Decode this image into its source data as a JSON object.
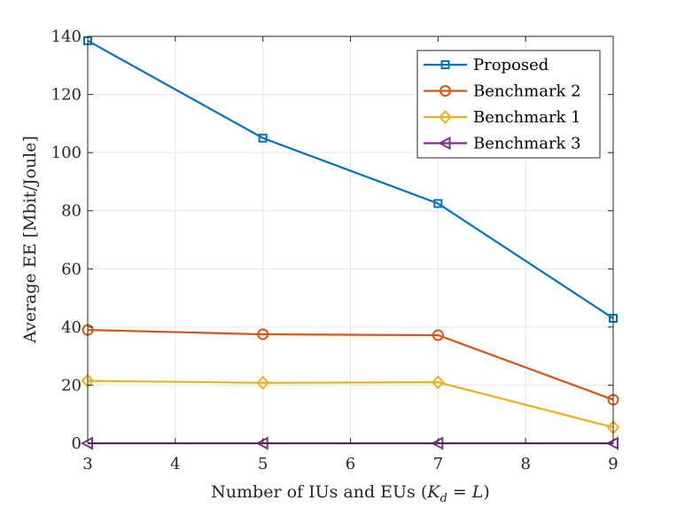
{
  "chart_data": {
    "type": "line",
    "title": "",
    "xlabel": "Number of IUs and EUs (K_d = L)",
    "xlabel_parts": {
      "prefix": "Number of IUs and EUs (",
      "k": "K",
      "sub": "d",
      "eq": " = ",
      "l": "L",
      "suffix": ")"
    },
    "ylabel": "Average EE [Mbit/Joule]",
    "xlim": [
      3,
      9
    ],
    "ylim": [
      0,
      140
    ],
    "xticks": [
      3,
      4,
      5,
      6,
      7,
      8,
      9
    ],
    "yticks": [
      0,
      20,
      40,
      60,
      80,
      100,
      120,
      140
    ],
    "grid": true,
    "legend_position": "top-right",
    "x": [
      3,
      5,
      7,
      9
    ],
    "series": [
      {
        "name": "Proposed",
        "color": "#0072BD",
        "marker": "square",
        "values": [
          138.5,
          105,
          82.5,
          43
        ]
      },
      {
        "name": "Benchmark 2",
        "color": "#D95319",
        "marker": "circle",
        "values": [
          39,
          37.5,
          37.2,
          15
        ]
      },
      {
        "name": "Benchmark 1",
        "color": "#EDB120",
        "marker": "diamond",
        "values": [
          21.5,
          20.8,
          21,
          5.5
        ]
      },
      {
        "name": "Benchmark 3",
        "color": "#7E2F8E",
        "marker": "triangle-left",
        "values": [
          0,
          0,
          0,
          0
        ]
      }
    ]
  }
}
